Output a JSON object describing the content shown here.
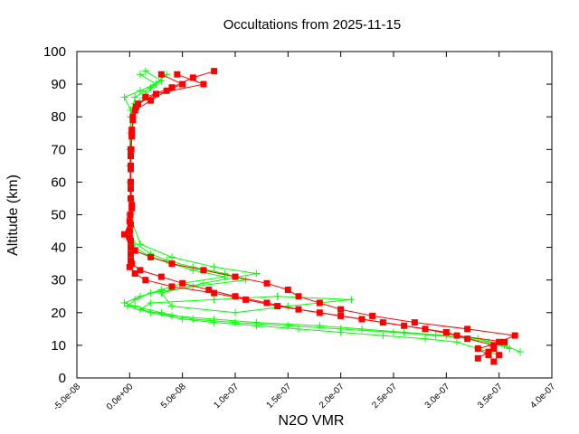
{
  "chart_data": {
    "type": "scatter",
    "title": "Occultations from 2025-11-15",
    "xlabel": "N2O VMR",
    "ylabel": "Altitude (km)",
    "xlim": [
      -5e-08,
      4e-07
    ],
    "ylim": [
      0,
      100
    ],
    "xticks": [
      -5e-08,
      0,
      5e-08,
      1e-07,
      1.5e-07,
      2e-07,
      2.5e-07,
      3e-07,
      3.5e-07,
      4e-07
    ],
    "xtick_labels": [
      "-5.0e-08",
      "0.0e+00",
      "5.0e-08",
      "1.0e-07",
      "1.5e-07",
      "2.0e-07",
      "2.5e-07",
      "3.0e-07",
      "3.5e-07",
      "4.0e-07"
    ],
    "yticks": [
      0,
      10,
      20,
      30,
      40,
      50,
      60,
      70,
      80,
      90,
      100
    ],
    "ytick_labels": [
      "0",
      "10",
      "20",
      "30",
      "40",
      "50",
      "60",
      "70",
      "80",
      "90",
      "100"
    ],
    "grid": false,
    "legend": "none",
    "series": [
      {
        "color": "#00ff00",
        "marker": "plus",
        "line": true,
        "profiles": [
          [
            [
              3.7e-07,
              8
            ],
            [
              3.55e-07,
              10
            ],
            [
              3.3e-07,
              12
            ],
            [
              2.9e-07,
              13
            ],
            [
              2.5e-07,
              14
            ],
            [
              2e-07,
              15
            ],
            [
              1.5e-07,
              16
            ],
            [
              1e-07,
              17
            ],
            [
              6e-08,
              18
            ],
            [
              3e-08,
              20
            ],
            [
              5e-09,
              22
            ],
            [
              -5e-09,
              23
            ],
            [
              1e-08,
              25
            ],
            [
              3e-08,
              27
            ],
            [
              5e-08,
              29
            ],
            [
              9e-08,
              31
            ],
            [
              6e-08,
              33
            ],
            [
              4e-08,
              35
            ],
            [
              2e-08,
              37
            ],
            [
              5e-09,
              40
            ],
            [
              0,
              45
            ],
            [
              1e-09,
              55
            ],
            [
              0,
              65
            ],
            [
              1e-09,
              75
            ],
            [
              1e-09,
              82
            ],
            [
              -5e-09,
              86
            ],
            [
              1e-08,
              88
            ],
            [
              3e-08,
              91
            ],
            [
              1.5e-08,
              94
            ]
          ],
          [
            [
              3.6e-07,
              9
            ],
            [
              3.4e-07,
              11
            ],
            [
              3e-07,
              13
            ],
            [
              2.6e-07,
              14
            ],
            [
              2.2e-07,
              15
            ],
            [
              1.8e-07,
              16
            ],
            [
              1.2e-07,
              17
            ],
            [
              8e-08,
              18
            ],
            [
              4e-08,
              19
            ],
            [
              1e-08,
              21
            ],
            [
              2e-08,
              23
            ],
            [
              8e-08,
              24
            ],
            [
              1.4e-07,
              25
            ],
            [
              2.1e-07,
              24
            ],
            [
              1.5e-07,
              22
            ],
            [
              1e-07,
              20
            ],
            [
              4e-08,
              22
            ],
            [
              3e-08,
              26
            ],
            [
              7e-08,
              29
            ],
            [
              1.2e-07,
              32
            ],
            [
              8e-08,
              34
            ],
            [
              4e-08,
              37
            ],
            [
              1e-08,
              41
            ],
            [
              0,
              50
            ],
            [
              1e-09,
              60
            ],
            [
              0,
              70
            ],
            [
              1e-09,
              80
            ],
            [
              5e-09,
              86
            ],
            [
              2e-08,
              89
            ],
            [
              3.5e-08,
              93
            ]
          ],
          [
            [
              3.5e-07,
              7
            ],
            [
              3.3e-07,
              9
            ],
            [
              3.1e-07,
              11
            ],
            [
              2.8e-07,
              12
            ],
            [
              2.4e-07,
              13
            ],
            [
              2e-07,
              14
            ],
            [
              1.6e-07,
              15
            ],
            [
              1.2e-07,
              16
            ],
            [
              8e-08,
              17
            ],
            [
              5e-08,
              18
            ],
            [
              2e-08,
              20
            ],
            [
              -2e-09,
              22
            ],
            [
              5e-09,
              24
            ],
            [
              2e-08,
              26
            ],
            [
              6e-08,
              28
            ],
            [
              1.1e-07,
              30
            ],
            [
              9e-08,
              32
            ],
            [
              6e-08,
              34
            ],
            [
              3.5e-08,
              36
            ],
            [
              2e-08,
              38
            ],
            [
              2e-09,
              42
            ],
            [
              1e-09,
              50
            ],
            [
              0,
              60
            ],
            [
              1e-09,
              70
            ],
            [
              1e-09,
              80
            ],
            [
              5e-09,
              84
            ],
            [
              1.5e-08,
              87
            ],
            [
              2.5e-08,
              90
            ],
            [
              1e-08,
              93
            ]
          ]
        ]
      },
      {
        "color": "#ff0000",
        "marker": "square",
        "line": true,
        "profiles": [
          [
            [
              3.45e-07,
              5
            ],
            [
              3.5e-07,
              7
            ],
            [
              3.45e-07,
              9
            ],
            [
              3.5e-07,
              11
            ],
            [
              3.65e-07,
              13
            ],
            [
              3.2e-07,
              15
            ],
            [
              2.7e-07,
              17
            ],
            [
              2.3e-07,
              19
            ],
            [
              2e-07,
              21
            ],
            [
              1.8e-07,
              23
            ],
            [
              1.6e-07,
              25
            ],
            [
              1.5e-07,
              27
            ],
            [
              1.3e-07,
              29
            ],
            [
              1e-07,
              31
            ],
            [
              7e-08,
              33
            ],
            [
              4e-08,
              35
            ],
            [
              2e-08,
              37
            ],
            [
              5e-09,
              39
            ],
            [
              1e-09,
              42
            ],
            [
              0,
              45
            ],
            [
              5e-10,
              50
            ],
            [
              1e-09,
              55
            ],
            [
              1e-09,
              60
            ],
            [
              1e-09,
              65
            ],
            [
              1.5e-09,
              70
            ],
            [
              2e-09,
              75
            ],
            [
              3e-09,
              80
            ],
            [
              6e-09,
              83
            ],
            [
              1.5e-08,
              86
            ],
            [
              4e-08,
              89
            ],
            [
              6e-08,
              92
            ],
            [
              8e-08,
              94
            ]
          ],
          [
            [
              3.3e-07,
              6
            ],
            [
              3.4e-07,
              8
            ],
            [
              3.45e-07,
              10
            ],
            [
              3.2e-07,
              12
            ],
            [
              3e-07,
              14
            ],
            [
              2.6e-07,
              16
            ],
            [
              2.2e-07,
              18
            ],
            [
              1.8e-07,
              20
            ],
            [
              1.4e-07,
              22
            ],
            [
              1.1e-07,
              24
            ],
            [
              8e-08,
              26
            ],
            [
              4e-08,
              28
            ],
            [
              1.5e-08,
              30
            ],
            [
              5e-09,
              32
            ],
            [
              0,
              34
            ],
            [
              1e-09,
              36
            ],
            [
              1e-09,
              40
            ],
            [
              -5e-09,
              44
            ],
            [
              0,
              48
            ],
            [
              2e-09,
              52
            ],
            [
              1e-09,
              58
            ],
            [
              1e-09,
              64
            ],
            [
              1e-09,
              70
            ],
            [
              2e-09,
              76
            ],
            [
              5e-09,
              82
            ],
            [
              2e-08,
              85
            ],
            [
              3.5e-08,
              88
            ],
            [
              5e-08,
              90
            ],
            [
              3e-08,
              93
            ]
          ],
          [
            [
              3.4e-07,
              7
            ],
            [
              3.3e-07,
              9
            ],
            [
              3.55e-07,
              11
            ],
            [
              3.1e-07,
              13
            ],
            [
              2.8e-07,
              15
            ],
            [
              2.4e-07,
              17
            ],
            [
              2e-07,
              19
            ],
            [
              1.6e-07,
              21
            ],
            [
              1.3e-07,
              23
            ],
            [
              1e-07,
              25
            ],
            [
              7.5e-08,
              27
            ],
            [
              5e-08,
              29
            ],
            [
              3e-08,
              31
            ],
            [
              1e-08,
              33
            ],
            [
              2e-09,
              35
            ],
            [
              1e-09,
              38
            ],
            [
              0,
              43
            ],
            [
              1e-09,
              47
            ],
            [
              2e-09,
              53
            ],
            [
              1e-09,
              60
            ],
            [
              1e-09,
              68
            ],
            [
              2e-09,
              74
            ],
            [
              3e-09,
              79
            ],
            [
              8e-09,
              84
            ],
            [
              2.5e-08,
              87
            ],
            [
              7e-08,
              90
            ],
            [
              4.5e-08,
              93
            ]
          ]
        ]
      }
    ]
  }
}
